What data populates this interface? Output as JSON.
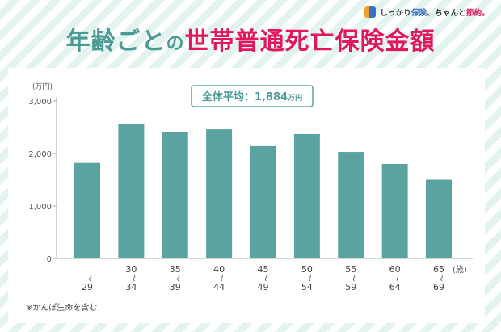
{
  "brand": {
    "text_part1": "しっかり",
    "text_part2": "保険",
    "text_part3": "、ちゃんと",
    "text_part4": "節約。"
  },
  "title": {
    "part1": "年齢ごと",
    "part2": "の",
    "part3": "世帯普通死亡保険金額"
  },
  "colors": {
    "bar": "#5ba3a0",
    "title_teal": "#4a9b95",
    "title_magenta": "#e2175e",
    "axis": "#aaaaaa"
  },
  "chart_data": {
    "type": "bar",
    "title": "全体平均：1,884万円",
    "title_prefix": "全体平均：",
    "title_value": "1,884",
    "title_unit": "万円",
    "ylabel": "(万円)",
    "xlabel_unit": "(歳)",
    "ylim": [
      0,
      3000
    ],
    "yticks": [
      0,
      1000,
      2000,
      3000
    ],
    "ytick_labels": [
      "0",
      "1,000",
      "2,000",
      "3,000"
    ],
    "categories": [
      {
        "top": "",
        "bottom": "29"
      },
      {
        "top": "30",
        "bottom": "34"
      },
      {
        "top": "35",
        "bottom": "39"
      },
      {
        "top": "40",
        "bottom": "44"
      },
      {
        "top": "45",
        "bottom": "49"
      },
      {
        "top": "50",
        "bottom": "54"
      },
      {
        "top": "55",
        "bottom": "59"
      },
      {
        "top": "60",
        "bottom": "64"
      },
      {
        "top": "65",
        "bottom": "69"
      }
    ],
    "range_separator": "〜",
    "values": [
      1820,
      2570,
      2400,
      2460,
      2140,
      2370,
      2030,
      1800,
      1500
    ],
    "footnote": "※かんぽ生命を含む"
  }
}
